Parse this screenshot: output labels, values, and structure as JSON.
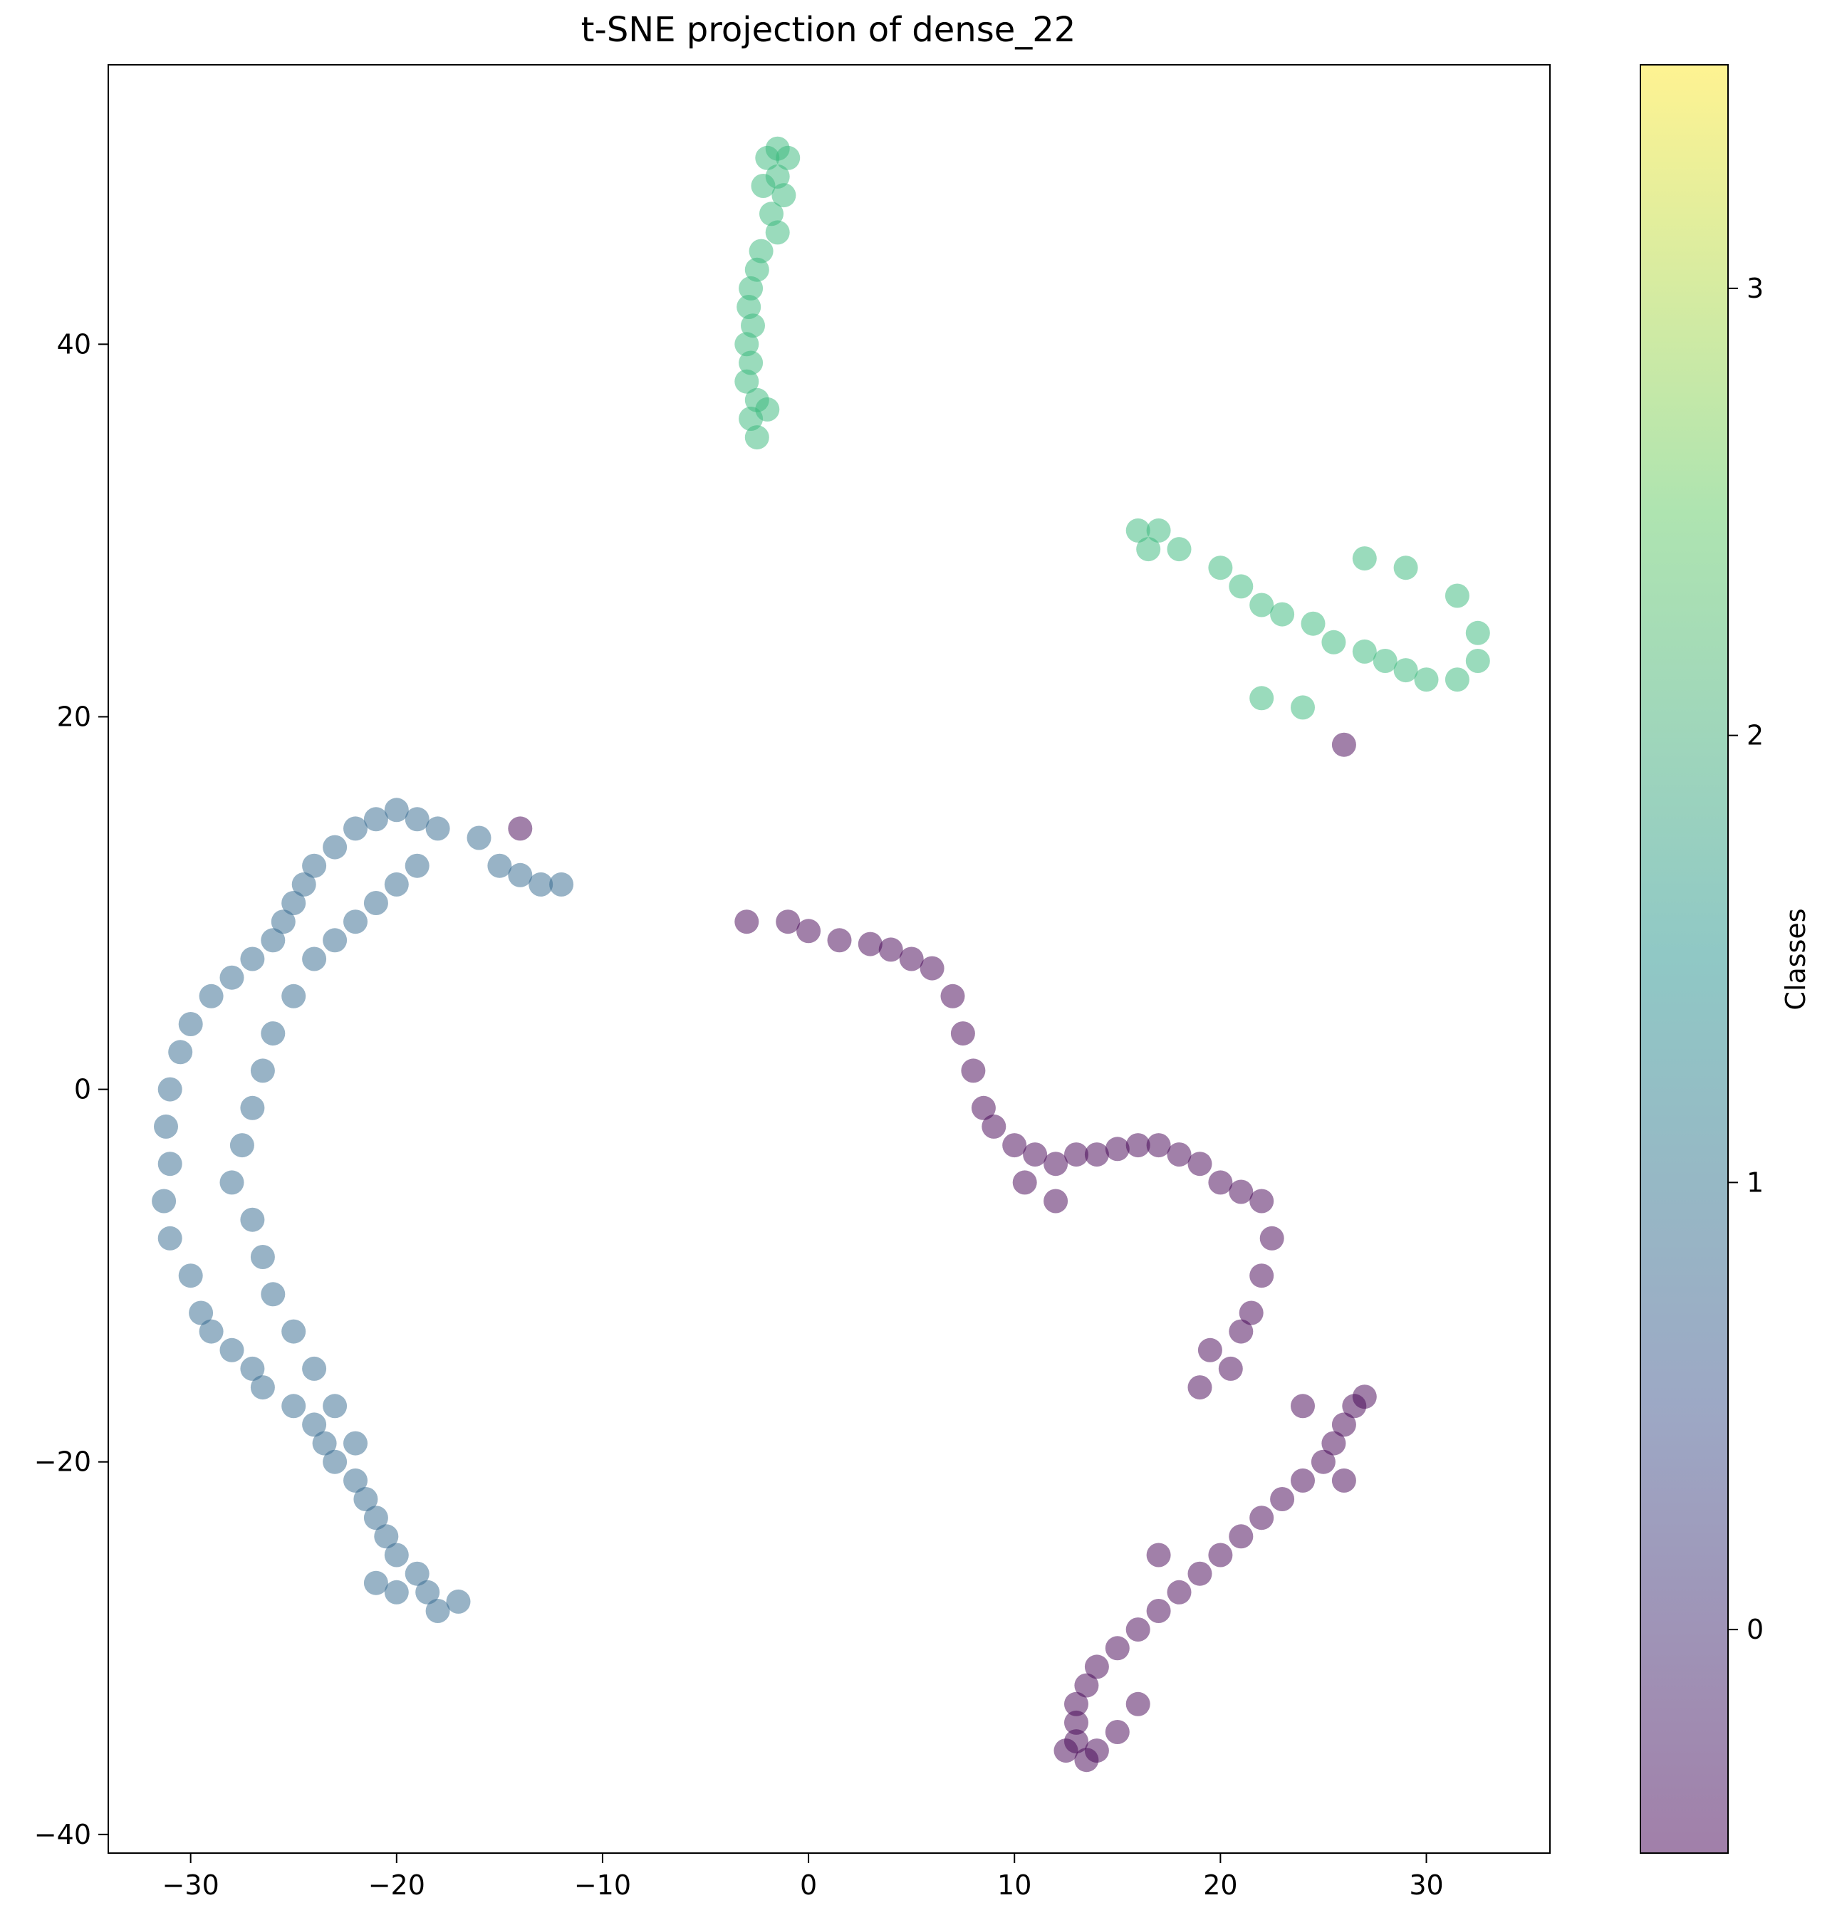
{
  "chart_data": {
    "type": "scatter",
    "title": "t-SNE projection of dense_22",
    "xlabel": "",
    "ylabel": "",
    "xlim": [
      -34,
      36
    ],
    "ylim": [
      -41,
      55
    ],
    "xticks": [
      -30,
      -20,
      -10,
      0,
      10,
      20,
      30
    ],
    "yticks": [
      -40,
      -20,
      0,
      20,
      40
    ],
    "grid": false,
    "marker_alpha": 0.5,
    "colorbar": {
      "label": "Classes",
      "range": [
        -0.5,
        3.5
      ],
      "ticks": [
        0,
        1,
        2,
        3
      ],
      "colormap": "viridis",
      "stops": [
        "#440154",
        "#3b528b",
        "#21918c",
        "#5ec962",
        "#fde725"
      ]
    },
    "class_colors": {
      "0": "#440154",
      "1": "#31688e",
      "2": "#35b779"
    },
    "series": [
      {
        "class": 2,
        "points": [
          [
            -1.5,
            50.5
          ],
          [
            -2,
            50
          ],
          [
            -1,
            50
          ],
          [
            -1.5,
            49
          ],
          [
            -2.2,
            48.5
          ],
          [
            -1.2,
            48
          ],
          [
            -1.8,
            47
          ],
          [
            -1.5,
            46
          ],
          [
            -2.3,
            45
          ],
          [
            -2.5,
            44
          ],
          [
            -2.8,
            43
          ],
          [
            -2.9,
            42
          ],
          [
            -2.7,
            41
          ],
          [
            -3,
            40
          ],
          [
            -2.8,
            39
          ],
          [
            -3,
            38
          ],
          [
            -2.5,
            37
          ],
          [
            -2.8,
            36
          ],
          [
            -2.5,
            35
          ],
          [
            -2,
            36.5
          ],
          [
            16,
            30
          ],
          [
            17,
            30
          ],
          [
            16.5,
            29
          ],
          [
            18,
            29
          ],
          [
            20,
            28
          ],
          [
            21,
            27
          ],
          [
            22,
            26
          ],
          [
            23,
            25.5
          ],
          [
            24.5,
            25
          ],
          [
            25.5,
            24
          ],
          [
            27,
            23.5
          ],
          [
            28,
            23
          ],
          [
            29,
            22.5
          ],
          [
            30,
            22
          ],
          [
            31.5,
            22
          ],
          [
            32.5,
            23
          ],
          [
            32.5,
            24.5
          ],
          [
            31.5,
            26.5
          ],
          [
            27,
            28.5
          ],
          [
            29,
            28
          ],
          [
            22,
            21
          ],
          [
            24,
            20.5
          ]
        ]
      },
      {
        "class": 1,
        "points": [
          [
            -20,
            15
          ],
          [
            -19,
            14.5
          ],
          [
            -18,
            14
          ],
          [
            -16,
            13.5
          ],
          [
            -15,
            12
          ],
          [
            -14,
            11.5
          ],
          [
            -13,
            11
          ],
          [
            -12,
            11
          ],
          [
            -21,
            14.5
          ],
          [
            -22,
            14
          ],
          [
            -23,
            13
          ],
          [
            -24,
            12
          ],
          [
            -24.5,
            11
          ],
          [
            -25,
            10
          ],
          [
            -25.5,
            9
          ],
          [
            -26,
            8
          ],
          [
            -27,
            7
          ],
          [
            -28,
            6
          ],
          [
            -29,
            5
          ],
          [
            -30,
            3.5
          ],
          [
            -30.5,
            2
          ],
          [
            -31,
            0
          ],
          [
            -31.2,
            -2
          ],
          [
            -31,
            -4
          ],
          [
            -31.3,
            -6
          ],
          [
            -31,
            -8
          ],
          [
            -30,
            -10
          ],
          [
            -29.5,
            -12
          ],
          [
            -29,
            -13
          ],
          [
            -28,
            -14
          ],
          [
            -27,
            -15
          ],
          [
            -26.5,
            -16
          ],
          [
            -25,
            -17
          ],
          [
            -24,
            -18
          ],
          [
            -23.5,
            -19
          ],
          [
            -23,
            -20
          ],
          [
            -22,
            -21
          ],
          [
            -21.5,
            -22
          ],
          [
            -21,
            -23
          ],
          [
            -20.5,
            -24
          ],
          [
            -20,
            -25
          ],
          [
            -19,
            -26
          ],
          [
            -18.5,
            -27
          ],
          [
            -18,
            -28
          ],
          [
            -17,
            -27.5
          ],
          [
            -20,
            -27
          ],
          [
            -21,
            -26.5
          ],
          [
            -19,
            12
          ],
          [
            -20,
            11
          ],
          [
            -21,
            10
          ],
          [
            -22,
            9
          ],
          [
            -23,
            8
          ],
          [
            -24,
            7
          ],
          [
            -25,
            5
          ],
          [
            -26,
            3
          ],
          [
            -26.5,
            1
          ],
          [
            -27,
            -1
          ],
          [
            -27.5,
            -3
          ],
          [
            -28,
            -5
          ],
          [
            -27,
            -7
          ],
          [
            -26.5,
            -9
          ],
          [
            -26,
            -11
          ],
          [
            -25,
            -13
          ],
          [
            -24,
            -15
          ],
          [
            -23,
            -17
          ],
          [
            -22,
            -19
          ]
        ]
      },
      {
        "class": 0,
        "points": [
          [
            -14,
            14
          ],
          [
            26,
            18.5
          ],
          [
            -3,
            9
          ],
          [
            -1,
            9
          ],
          [
            0,
            8.5
          ],
          [
            1.5,
            8
          ],
          [
            3,
            7.8
          ],
          [
            4,
            7.5
          ],
          [
            5,
            7
          ],
          [
            6,
            6.5
          ],
          [
            7,
            5
          ],
          [
            7.5,
            3
          ],
          [
            8,
            1
          ],
          [
            8.5,
            -1
          ],
          [
            9,
            -2
          ],
          [
            10,
            -3
          ],
          [
            11,
            -3.5
          ],
          [
            12,
            -4
          ],
          [
            13,
            -3.5
          ],
          [
            14,
            -3.5
          ],
          [
            15,
            -3.2
          ],
          [
            16,
            -3
          ],
          [
            17,
            -3
          ],
          [
            18,
            -3.5
          ],
          [
            19,
            -4
          ],
          [
            20,
            -5
          ],
          [
            21,
            -5.5
          ],
          [
            22,
            -6
          ],
          [
            22.5,
            -8
          ],
          [
            22,
            -10
          ],
          [
            21.5,
            -12
          ],
          [
            21,
            -13
          ],
          [
            19.5,
            -14
          ],
          [
            20.5,
            -15
          ],
          [
            19,
            -16
          ],
          [
            12,
            -6
          ],
          [
            10.5,
            -5
          ],
          [
            26.5,
            -17
          ],
          [
            26,
            -18
          ],
          [
            25.5,
            -19
          ],
          [
            25,
            -20
          ],
          [
            24,
            -21
          ],
          [
            23,
            -22
          ],
          [
            22,
            -23
          ],
          [
            21,
            -24
          ],
          [
            20,
            -25
          ],
          [
            19,
            -26
          ],
          [
            18,
            -27
          ],
          [
            17,
            -28
          ],
          [
            16,
            -29
          ],
          [
            15,
            -30
          ],
          [
            14,
            -31
          ],
          [
            13.5,
            -32
          ],
          [
            13,
            -33
          ],
          [
            13,
            -34
          ],
          [
            13,
            -35
          ],
          [
            13.5,
            -36
          ],
          [
            14,
            -35.5
          ],
          [
            12.5,
            -35.5
          ],
          [
            27,
            -16.5
          ],
          [
            26,
            -21
          ],
          [
            24,
            -17
          ],
          [
            17,
            -25
          ],
          [
            16,
            -33
          ],
          [
            15,
            -34.5
          ]
        ]
      }
    ]
  }
}
